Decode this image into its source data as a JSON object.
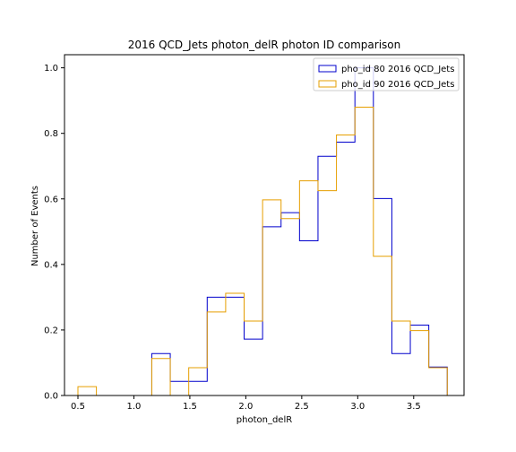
{
  "chart_data": {
    "type": "step-histogram",
    "title": "2016 QCD_Jets photon_delR photon ID comparison",
    "xlabel": "photon_delR",
    "ylabel": "Number of Events",
    "xlim": [
      0.38,
      3.95
    ],
    "ylim": [
      0,
      1.04
    ],
    "xticks": [
      "0.5",
      "1.0",
      "1.5",
      "2.0",
      "2.5",
      "3.0",
      "3.5"
    ],
    "yticks": [
      "0.0",
      "0.2",
      "0.4",
      "0.6",
      "0.8",
      "1.0"
    ],
    "legend_position": "upper right",
    "bin_edges": [
      0.5,
      0.665,
      0.83,
      0.995,
      1.16,
      1.325,
      1.49,
      1.655,
      1.82,
      1.985,
      2.15,
      2.315,
      2.48,
      2.645,
      2.81,
      2.975,
      3.14,
      3.305,
      3.47,
      3.635,
      3.8
    ],
    "series": [
      {
        "name": "pho_id 80 2016 QCD_Jets",
        "color": "#0000cc",
        "values": [
          0.0,
          0.0,
          0.0,
          0.0,
          0.128,
          0.043,
          0.043,
          0.3,
          0.3,
          0.172,
          0.515,
          0.558,
          0.472,
          0.73,
          0.773,
          1.0,
          0.601,
          0.128,
          0.215,
          0.087
        ]
      },
      {
        "name": "pho_id 90 2016 QCD_Jets",
        "color": "#e69f00",
        "values": [
          0.027,
          0.0,
          0.0,
          0.0,
          0.113,
          0.0,
          0.085,
          0.255,
          0.312,
          0.227,
          0.597,
          0.54,
          0.655,
          0.625,
          0.795,
          0.88,
          0.425,
          0.227,
          0.198,
          0.085
        ]
      }
    ]
  }
}
